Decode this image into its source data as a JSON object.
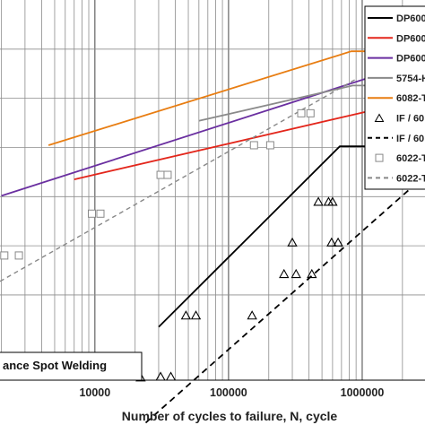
{
  "chart_data": {
    "type": "scatter",
    "xscale": "log",
    "xlim": [
      1950,
      2950000
    ],
    "xticks": [
      {
        "value": 10000,
        "label": "10000"
      },
      {
        "value": 100000,
        "label": "100000"
      },
      {
        "value": 1000000,
        "label": "1000000"
      }
    ],
    "xlabel": "Number of cycles to failure, N, cycle",
    "grid": true,
    "legend_position": "top-right",
    "annotation": "ance Spot Welding",
    "series": [
      {
        "name": "DP600",
        "kind": "line",
        "color": "#000000",
        "dash": "solid",
        "points": [
          [
            30000,
            0.86
          ],
          [
            680000,
            0.385
          ],
          [
            2950000,
            0.385
          ]
        ]
      },
      {
        "name": "DP600",
        "kind": "line",
        "color": "#e3261b",
        "dash": "solid",
        "points": [
          [
            7000,
            0.472
          ],
          [
            2950000,
            0.258
          ]
        ]
      },
      {
        "name": "DP600",
        "kind": "line",
        "color": "#6a2fa0",
        "dash": "solid",
        "points": [
          [
            2000,
            0.515
          ],
          [
            2500000,
            0.165
          ]
        ]
      },
      {
        "name": "5754-H",
        "kind": "line",
        "color": "#8a8a8a",
        "dash": "solid",
        "points": [
          [
            60000,
            0.318
          ],
          [
            850000,
            0.225
          ],
          [
            2950000,
            0.225
          ]
        ]
      },
      {
        "name": "6082-T",
        "kind": "line",
        "color": "#e87d12",
        "dash": "solid",
        "points": [
          [
            4500,
            0.382
          ],
          [
            830000,
            0.135
          ],
          [
            2950000,
            0.135
          ]
        ]
      },
      {
        "name": "IF / 60",
        "kind": "points",
        "marker": "triangle",
        "color": "#000000",
        "points": [
          [
            22000,
            0.992
          ],
          [
            31000,
            0.99
          ],
          [
            37000,
            0.99
          ],
          [
            48000,
            0.829
          ],
          [
            57000,
            0.829
          ],
          [
            150000,
            0.829
          ],
          [
            260000,
            0.72
          ],
          [
            320000,
            0.72
          ],
          [
            420000,
            0.72
          ],
          [
            300000,
            0.637
          ],
          [
            470000,
            0.53
          ],
          [
            560000,
            0.53
          ],
          [
            600000,
            0.53
          ],
          [
            660000,
            0.637
          ],
          [
            590000,
            0.637
          ],
          [
            1280000,
            0.283
          ]
        ]
      },
      {
        "name": "IF / 60",
        "kind": "line",
        "color": "#000000",
        "dash": "dashed",
        "points": [
          [
            24000,
            1.112
          ],
          [
            2950000,
            0.462
          ]
        ]
      },
      {
        "name": "6022-T",
        "kind": "points",
        "marker": "square",
        "color": "#888888",
        "points": [
          [
            2100,
            0.672
          ],
          [
            2700,
            0.672
          ],
          [
            9500,
            0.562
          ],
          [
            11000,
            0.562
          ],
          [
            31000,
            0.46
          ],
          [
            35000,
            0.46
          ],
          [
            155000,
            0.382
          ],
          [
            205000,
            0.382
          ],
          [
            350000,
            0.298
          ],
          [
            410000,
            0.298
          ]
        ]
      },
      {
        "name": "6022-T",
        "kind": "line",
        "color": "#888888",
        "dash": "dashed",
        "points": [
          [
            1950,
            0.74
          ],
          [
            880000,
            0.21
          ]
        ]
      }
    ]
  }
}
